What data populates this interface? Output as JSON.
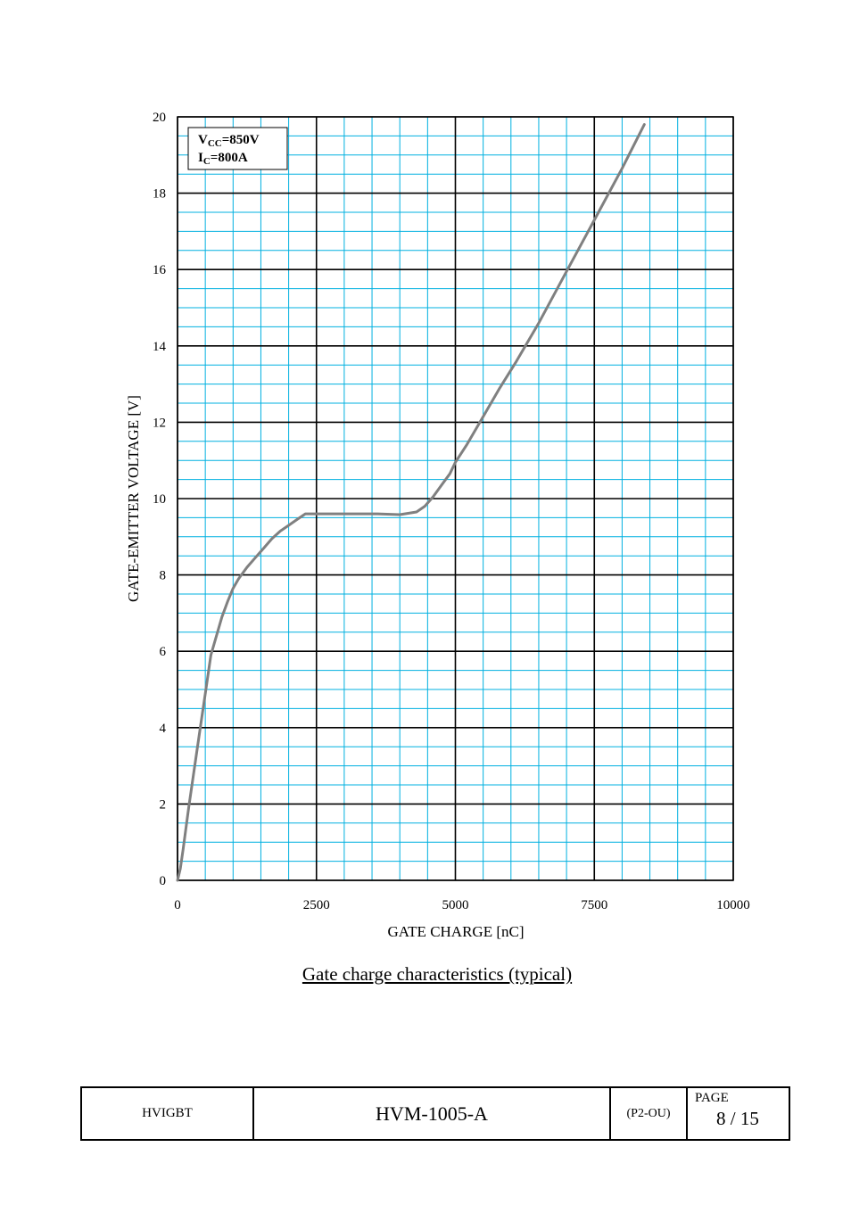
{
  "chart_data": {
    "type": "line",
    "title": "",
    "xlabel": "GATE CHARGE [nC]",
    "ylabel": "GATE-EMITTER VOLTAGE [V]",
    "xlim": [
      0,
      10000
    ],
    "ylim": [
      0,
      20
    ],
    "x_ticks": [
      "0",
      "2500",
      "5000",
      "7500",
      "10000"
    ],
    "y_ticks": [
      "0",
      "2",
      "4",
      "6",
      "8",
      "10",
      "12",
      "14",
      "16",
      "18",
      "20"
    ],
    "grid": true,
    "minor_grid_color": "#00b0e0",
    "major_grid_color": "#000000",
    "line_color": "#808080",
    "conditions": {
      "vcc": {
        "sym": "V",
        "sub": "CC",
        "val": "=850V"
      },
      "ic": {
        "sym": "I",
        "sub": "C",
        "val": "=800A"
      }
    },
    "series": [
      {
        "x": [
          0,
          50,
          100,
          200,
          300,
          400,
          500,
          600,
          700,
          800,
          900,
          1000,
          1100,
          1250,
          1400,
          1550,
          1700,
          1850,
          2000,
          2150,
          2300,
          2500,
          2800,
          3200,
          3600,
          4000,
          4300,
          4450,
          4600,
          4750,
          4900,
          5000,
          5200,
          5500,
          5800,
          6100,
          6500,
          7000,
          7500,
          8000,
          8400
        ],
        "y": [
          0,
          0.3,
          0.8,
          1.9,
          2.9,
          3.9,
          4.9,
          5.9,
          6.4,
          6.9,
          7.3,
          7.65,
          7.9,
          8.2,
          8.45,
          8.7,
          8.95,
          9.15,
          9.3,
          9.45,
          9.6,
          9.6,
          9.6,
          9.6,
          9.6,
          9.58,
          9.65,
          9.8,
          10.05,
          10.35,
          10.65,
          10.95,
          11.4,
          12.15,
          12.9,
          13.6,
          14.6,
          15.95,
          17.3,
          18.65,
          19.8
        ]
      }
    ]
  },
  "caption": "Gate charge characteristics (typical)",
  "footer": {
    "product": "HVIGBT",
    "doc_number": "HVM-1005-A",
    "rev": "(P2-OU)",
    "page_label": "PAGE",
    "page": "8 / 15"
  }
}
